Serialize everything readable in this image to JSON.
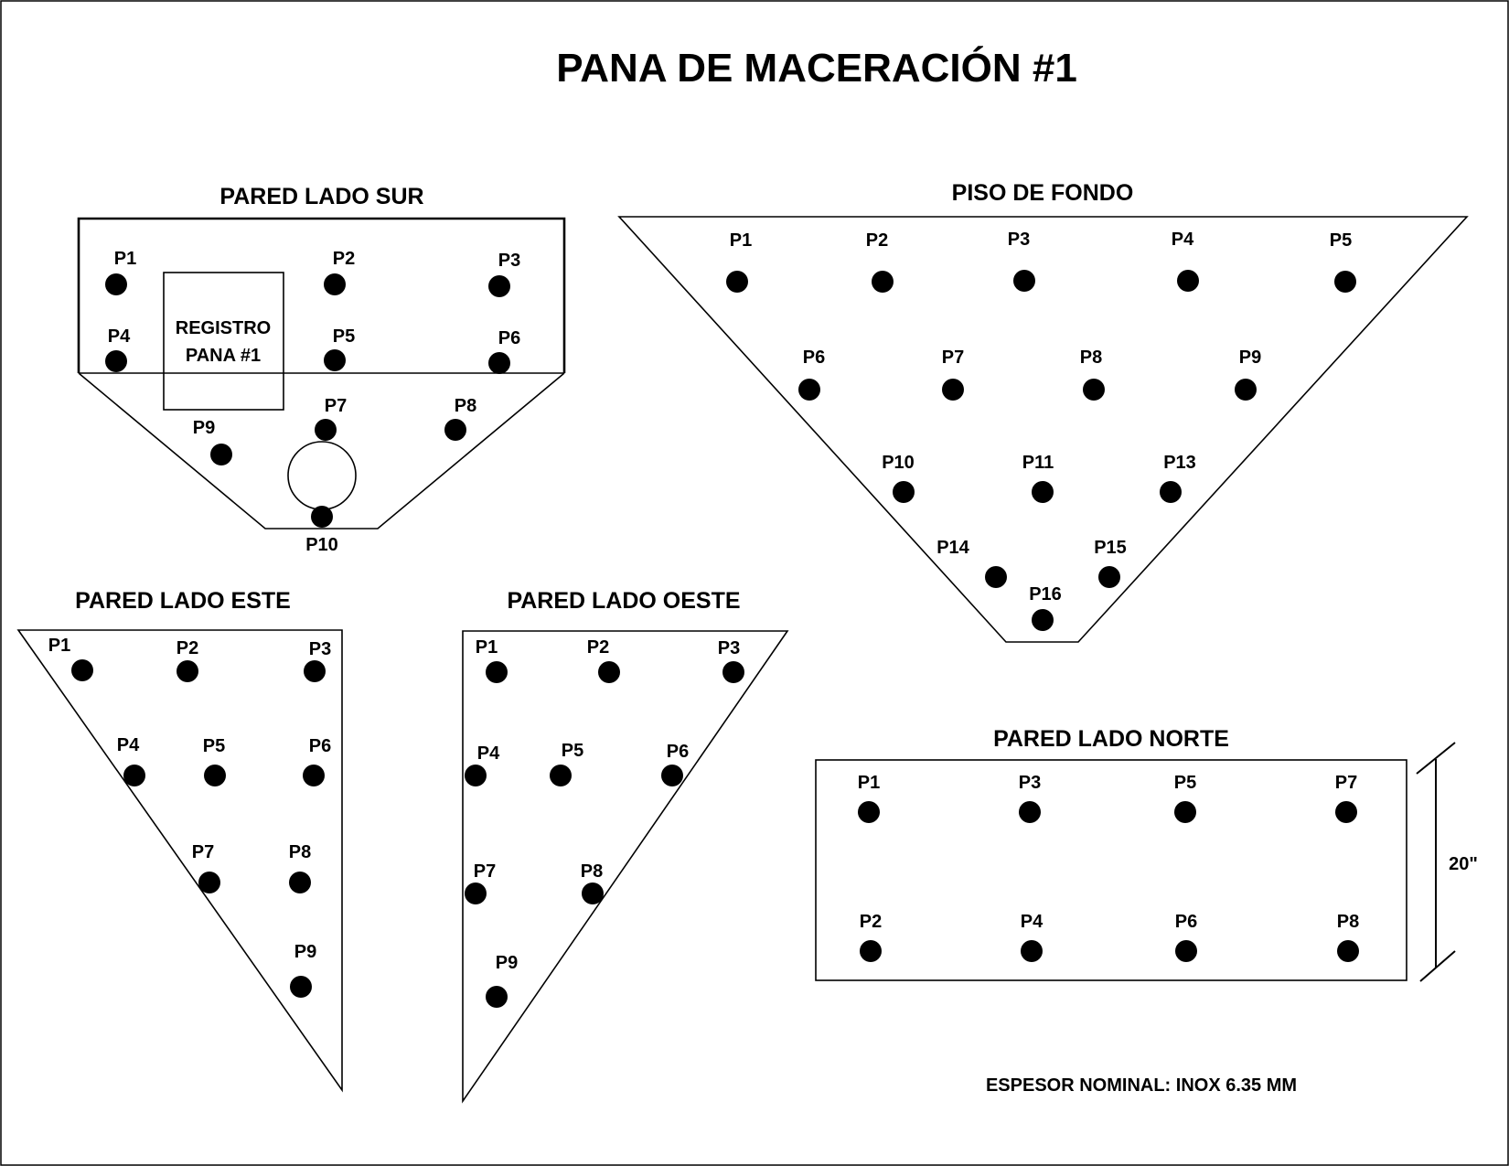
{
  "title": "PANA DE MACERACIÓN #1",
  "thickness_note": "ESPESOR NOMINAL: INOX 6.35 MM",
  "colors": {
    "ink": "#000000",
    "background": "#ffffff"
  },
  "sur": {
    "title": "PARED LADO SUR",
    "registro_line1": "REGISTRO",
    "registro_line2": "PANA #1",
    "points": [
      "P1",
      "P2",
      "P3",
      "P4",
      "P5",
      "P6",
      "P7",
      "P8",
      "P9",
      "P10"
    ]
  },
  "piso": {
    "title": "PISO DE FONDO",
    "points": [
      "P1",
      "P2",
      "P3",
      "P4",
      "P5",
      "P6",
      "P7",
      "P8",
      "P9",
      "P10",
      "P11",
      "P13",
      "P14",
      "P15",
      "P16"
    ]
  },
  "este": {
    "title": "PARED LADO ESTE",
    "points": [
      "P1",
      "P2",
      "P3",
      "P4",
      "P5",
      "P6",
      "P7",
      "P8",
      "P9"
    ]
  },
  "oeste": {
    "title": "PARED LADO OESTE",
    "points": [
      "P1",
      "P2",
      "P3",
      "P4",
      "P5",
      "P6",
      "P7",
      "P8",
      "P9"
    ]
  },
  "norte": {
    "title": "PARED LADO NORTE",
    "dimension": "20\"",
    "points": [
      "P1",
      "P3",
      "P5",
      "P7",
      "P2",
      "P4",
      "P6",
      "P8"
    ]
  }
}
